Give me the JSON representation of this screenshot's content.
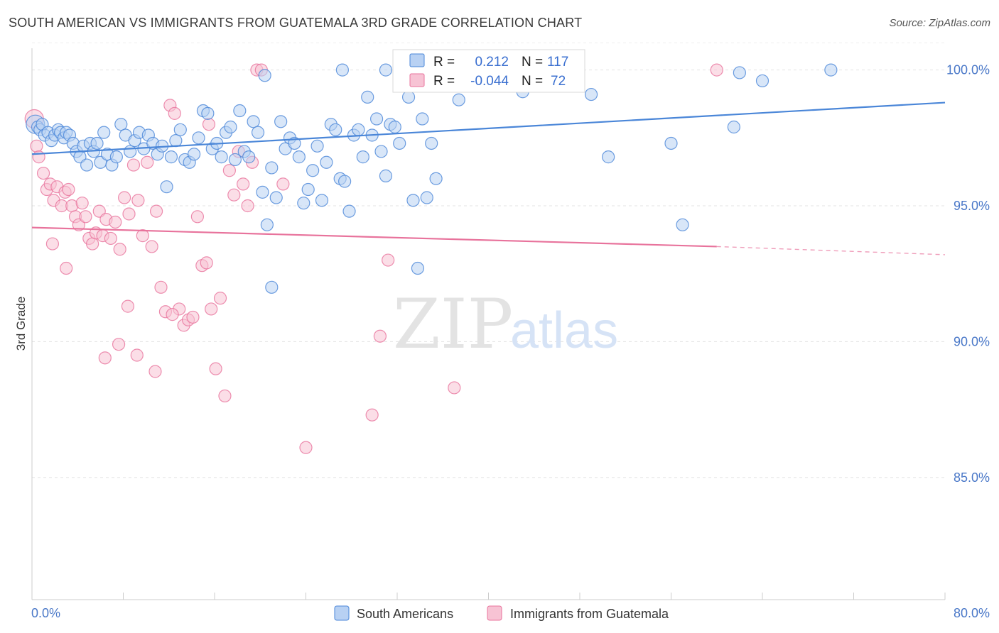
{
  "header": {
    "title": "SOUTH AMERICAN VS IMMIGRANTS FROM GUATEMALA 3RD GRADE CORRELATION CHART",
    "source": "Source: ZipAtlas.com"
  },
  "watermark": {
    "zip": "ZIP",
    "atlas": "atlas"
  },
  "colors": {
    "blue": "#4a86d8",
    "blue_fill": "#b8d1f3",
    "pink": "#e8739c",
    "pink_fill": "#f7c3d4",
    "axis_text": "#4a78c8"
  },
  "chart_data": {
    "type": "scatter",
    "title": "SOUTH AMERICAN VS IMMIGRANTS FROM GUATEMALA 3RD GRADE CORRELATION CHART",
    "xlabel": "",
    "ylabel": "3rd Grade",
    "xlim": [
      0,
      80
    ],
    "ylim": [
      80.5,
      100.8
    ],
    "x_tick_labels": [
      "0.0%",
      "80.0%"
    ],
    "y_ticks": [
      {
        "value": 100,
        "label": "100.0%"
      },
      {
        "value": 95,
        "label": "95.0%"
      },
      {
        "value": 90,
        "label": "90.0%"
      },
      {
        "value": 85,
        "label": "85.0%"
      }
    ],
    "grid": "horizontal dashed",
    "legend_position": "bottom",
    "stats_box": [
      {
        "series": "South Americans",
        "r_label": "R =",
        "r_value": "0.212",
        "n_label": "N =",
        "n_value": "117"
      },
      {
        "series": "Immigrants from Guatemala",
        "r_label": "R =",
        "r_value": "-0.044",
        "n_label": "N =",
        "n_value": "72"
      }
    ],
    "series": [
      {
        "name": "South Americans",
        "color": "#4a86d8",
        "trend": {
          "x": [
            0,
            80
          ],
          "y": [
            96.9,
            98.8
          ]
        },
        "points": [
          [
            0.3,
            98.0
          ],
          [
            0.5,
            97.9
          ],
          [
            0.7,
            97.8
          ],
          [
            0.9,
            98.0
          ],
          [
            1.1,
            97.6
          ],
          [
            1.4,
            97.7
          ],
          [
            1.7,
            97.4
          ],
          [
            2.0,
            97.6
          ],
          [
            2.3,
            97.8
          ],
          [
            2.5,
            97.7
          ],
          [
            2.8,
            97.5
          ],
          [
            3.0,
            97.7
          ],
          [
            3.3,
            97.6
          ],
          [
            3.6,
            97.3
          ],
          [
            3.9,
            97.0
          ],
          [
            4.2,
            96.8
          ],
          [
            4.5,
            97.2
          ],
          [
            4.8,
            96.5
          ],
          [
            5.1,
            97.3
          ],
          [
            5.4,
            97.0
          ],
          [
            5.7,
            97.3
          ],
          [
            6.0,
            96.6
          ],
          [
            6.3,
            97.7
          ],
          [
            6.6,
            96.9
          ],
          [
            7.0,
            96.5
          ],
          [
            7.4,
            96.8
          ],
          [
            7.8,
            98.0
          ],
          [
            8.2,
            97.6
          ],
          [
            8.6,
            97.0
          ],
          [
            9.0,
            97.4
          ],
          [
            9.4,
            97.7
          ],
          [
            9.8,
            97.1
          ],
          [
            10.2,
            97.6
          ],
          [
            10.6,
            97.3
          ],
          [
            11.0,
            96.9
          ],
          [
            11.4,
            97.2
          ],
          [
            11.8,
            95.7
          ],
          [
            12.2,
            96.8
          ],
          [
            12.6,
            97.4
          ],
          [
            13.0,
            97.8
          ],
          [
            13.4,
            96.7
          ],
          [
            13.8,
            96.6
          ],
          [
            14.2,
            96.9
          ],
          [
            14.6,
            97.5
          ],
          [
            15.0,
            98.5
          ],
          [
            15.4,
            98.4
          ],
          [
            15.8,
            97.1
          ],
          [
            16.2,
            97.3
          ],
          [
            16.6,
            96.8
          ],
          [
            17.0,
            97.7
          ],
          [
            17.4,
            97.9
          ],
          [
            17.8,
            96.7
          ],
          [
            18.2,
            98.5
          ],
          [
            18.6,
            97.0
          ],
          [
            19.0,
            96.8
          ],
          [
            19.4,
            98.1
          ],
          [
            19.8,
            97.7
          ],
          [
            20.2,
            95.5
          ],
          [
            20.6,
            94.3
          ],
          [
            21.0,
            96.4
          ],
          [
            21.4,
            95.3
          ],
          [
            21.8,
            98.1
          ],
          [
            22.2,
            97.1
          ],
          [
            22.6,
            97.5
          ],
          [
            23.0,
            97.3
          ],
          [
            23.4,
            96.8
          ],
          [
            23.8,
            95.1
          ],
          [
            24.2,
            95.6
          ],
          [
            24.6,
            96.3
          ],
          [
            25.0,
            97.2
          ],
          [
            25.4,
            95.2
          ],
          [
            25.8,
            96.6
          ],
          [
            26.2,
            98.0
          ],
          [
            26.6,
            97.8
          ],
          [
            27.0,
            96.0
          ],
          [
            27.4,
            95.9
          ],
          [
            27.8,
            94.8
          ],
          [
            28.2,
            97.6
          ],
          [
            28.6,
            97.8
          ],
          [
            29.0,
            96.8
          ],
          [
            29.4,
            99.0
          ],
          [
            29.8,
            97.6
          ],
          [
            30.2,
            98.2
          ],
          [
            30.6,
            97.0
          ],
          [
            31.0,
            96.1
          ],
          [
            31.4,
            98.0
          ],
          [
            31.8,
            97.9
          ],
          [
            32.2,
            97.3
          ],
          [
            32.6,
            99.4
          ],
          [
            33.0,
            99.0
          ],
          [
            33.4,
            95.2
          ],
          [
            33.8,
            92.7
          ],
          [
            34.2,
            98.2
          ],
          [
            34.6,
            95.3
          ],
          [
            35.0,
            97.3
          ],
          [
            35.4,
            96.0
          ],
          [
            20.4,
            99.8
          ],
          [
            27.2,
            100.0
          ],
          [
            31.0,
            100.0
          ],
          [
            33.8,
            99.8
          ],
          [
            36.0,
            99.6
          ],
          [
            37.0,
            100.0
          ],
          [
            37.4,
            98.9
          ],
          [
            38.0,
            100.0
          ],
          [
            39.0,
            99.7
          ],
          [
            41.0,
            100.0
          ],
          [
            43.0,
            99.2
          ],
          [
            46.0,
            99.7
          ],
          [
            49.0,
            99.1
          ],
          [
            56.0,
            97.3
          ],
          [
            57.0,
            94.3
          ],
          [
            62.0,
            99.9
          ],
          [
            64.0,
            99.6
          ],
          [
            70.0,
            100.0
          ],
          [
            61.5,
            97.9
          ],
          [
            50.5,
            96.8
          ],
          [
            21.0,
            92.0
          ]
        ]
      },
      {
        "name": "Immigrants from Guatemala",
        "color": "#e8739c",
        "trend": {
          "x": [
            0,
            60
          ],
          "y": [
            94.2,
            93.5
          ]
        },
        "trend_dashed": {
          "x": [
            60,
            80
          ],
          "y": [
            93.5,
            93.2
          ]
        },
        "points": [
          [
            0.2,
            98.2
          ],
          [
            0.4,
            97.2
          ],
          [
            0.6,
            96.8
          ],
          [
            1.0,
            96.2
          ],
          [
            1.3,
            95.6
          ],
          [
            1.6,
            95.8
          ],
          [
            1.9,
            95.2
          ],
          [
            2.2,
            95.7
          ],
          [
            2.6,
            95.0
          ],
          [
            2.9,
            95.5
          ],
          [
            3.2,
            95.6
          ],
          [
            3.5,
            95.0
          ],
          [
            3.8,
            94.6
          ],
          [
            4.1,
            94.3
          ],
          [
            4.4,
            95.1
          ],
          [
            4.7,
            94.6
          ],
          [
            5.0,
            93.8
          ],
          [
            5.3,
            93.6
          ],
          [
            5.6,
            94.0
          ],
          [
            5.9,
            94.8
          ],
          [
            6.2,
            93.9
          ],
          [
            6.5,
            94.5
          ],
          [
            6.9,
            93.8
          ],
          [
            7.3,
            94.4
          ],
          [
            7.7,
            93.4
          ],
          [
            8.1,
            95.3
          ],
          [
            8.5,
            94.7
          ],
          [
            8.9,
            96.5
          ],
          [
            9.3,
            95.2
          ],
          [
            9.7,
            93.9
          ],
          [
            10.1,
            96.6
          ],
          [
            10.5,
            93.5
          ],
          [
            10.9,
            94.8
          ],
          [
            11.3,
            92.0
          ],
          [
            11.7,
            91.1
          ],
          [
            12.1,
            98.7
          ],
          [
            12.5,
            98.4
          ],
          [
            12.9,
            91.2
          ],
          [
            13.3,
            90.6
          ],
          [
            13.7,
            90.8
          ],
          [
            14.1,
            90.9
          ],
          [
            14.5,
            94.6
          ],
          [
            14.9,
            92.8
          ],
          [
            15.3,
            92.9
          ],
          [
            15.7,
            91.2
          ],
          [
            16.1,
            89.0
          ],
          [
            16.5,
            91.6
          ],
          [
            16.9,
            88.0
          ],
          [
            17.3,
            96.3
          ],
          [
            17.7,
            95.4
          ],
          [
            18.1,
            97.0
          ],
          [
            18.5,
            95.8
          ],
          [
            18.9,
            95.0
          ],
          [
            19.3,
            96.6
          ],
          [
            19.7,
            100.0
          ],
          [
            20.1,
            100.0
          ],
          [
            22.0,
            95.8
          ],
          [
            24.0,
            86.1
          ],
          [
            3.0,
            92.7
          ],
          [
            6.4,
            89.4
          ],
          [
            7.6,
            89.9
          ],
          [
            8.4,
            91.3
          ],
          [
            9.2,
            89.5
          ],
          [
            10.8,
            88.9
          ],
          [
            12.3,
            91.0
          ],
          [
            15.5,
            98.0
          ],
          [
            30.5,
            90.2
          ],
          [
            31.2,
            93.0
          ],
          [
            37.0,
            88.3
          ],
          [
            29.8,
            87.3
          ],
          [
            60.0,
            100.0
          ],
          [
            1.8,
            93.6
          ]
        ]
      }
    ]
  }
}
